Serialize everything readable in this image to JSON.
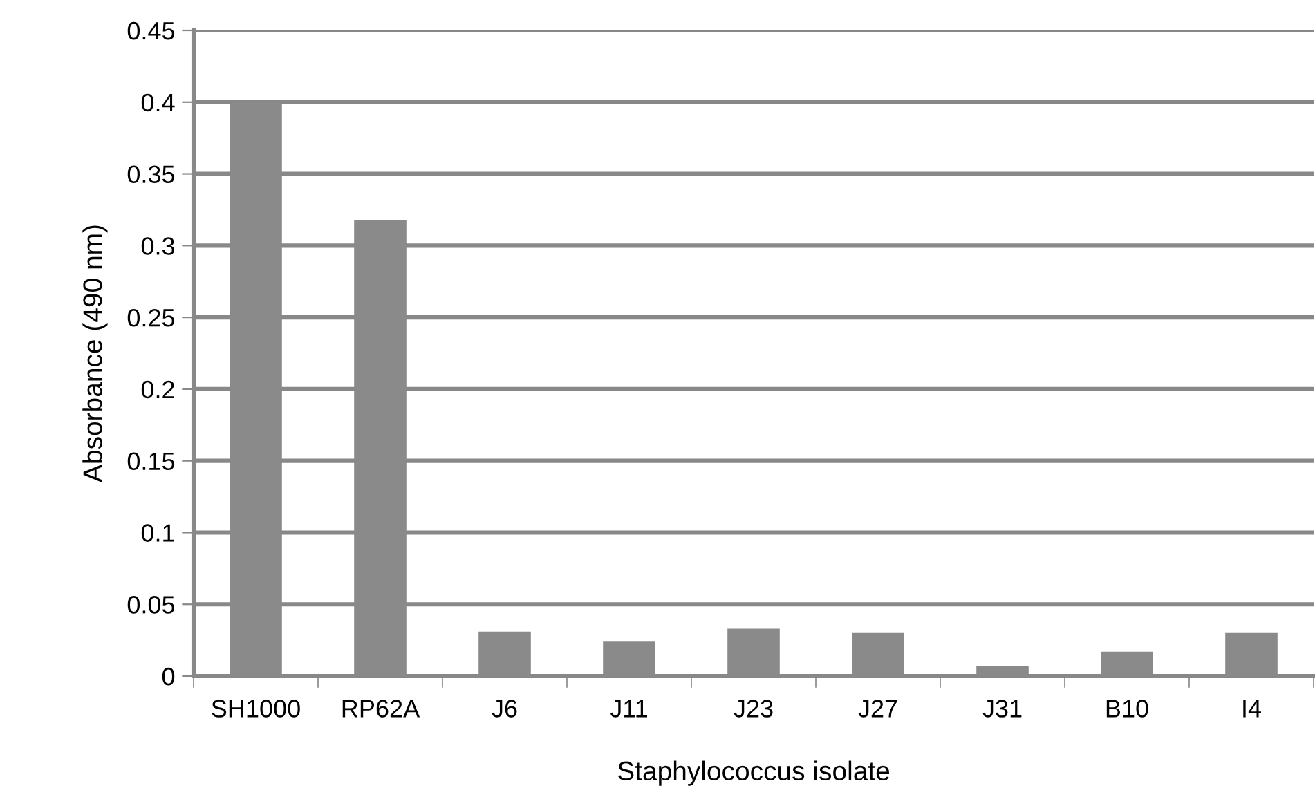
{
  "chart_data": {
    "type": "bar",
    "xlabel": "Staphylococcus isolate",
    "ylabel": "Absorbance (490 nm)",
    "categories": [
      "SH1000",
      "RP62A",
      "J6",
      "J11",
      "J23",
      "J27",
      "J31",
      "B10",
      "I4"
    ],
    "values": [
      0.4,
      0.318,
      0.031,
      0.024,
      0.033,
      0.03,
      0.007,
      0.017,
      0.03
    ],
    "color": "#8a8a8a",
    "ylim": [
      0,
      0.45
    ],
    "yticks": [
      {
        "value": 0,
        "label": "0"
      },
      0.05,
      0.1,
      0.15,
      0.2,
      0.25,
      0.3,
      0.35,
      0.4,
      0.45
    ],
    "grid": "y"
  }
}
